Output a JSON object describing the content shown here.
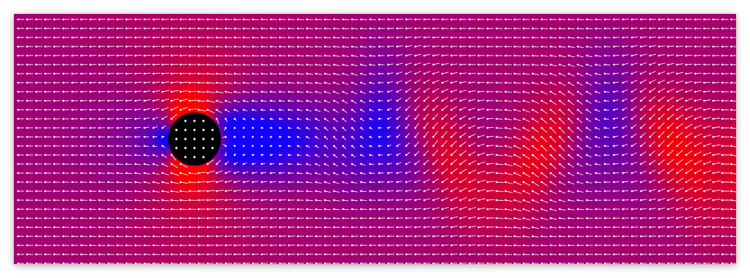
{
  "simulation": {
    "colors": {
      "fast": "#ff0000",
      "slow": "#0000ff",
      "obstacle": "#000000",
      "vectors": "#ffffff"
    },
    "obstacle_shape": "circle",
    "vector_field": "on"
  }
}
